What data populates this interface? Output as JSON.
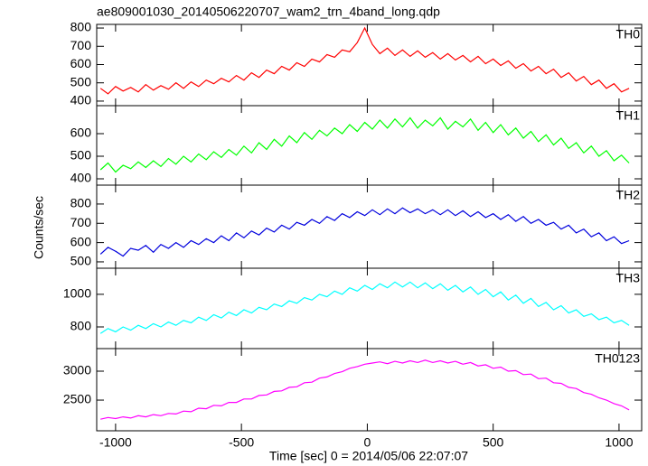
{
  "title": "ae809001030_20140506220707_wam2_trn_4band_long.qdp",
  "ylabel": "Counts/sec",
  "xlabel": "Time [sec] 0 = 2014/05/06 22:07:07",
  "chart_data": [
    {
      "type": "line",
      "label": "TH0",
      "color": "#ff0000",
      "ylim": [
        375,
        820
      ],
      "yticks": [
        400,
        500,
        600,
        700,
        800
      ],
      "xlim": [
        -1075,
        1090
      ],
      "x": [
        -1060,
        -1030,
        -1000,
        -970,
        -940,
        -910,
        -880,
        -850,
        -820,
        -790,
        -760,
        -730,
        -700,
        -670,
        -640,
        -610,
        -580,
        -550,
        -520,
        -490,
        -460,
        -430,
        -400,
        -370,
        -340,
        -310,
        -280,
        -250,
        -220,
        -190,
        -160,
        -130,
        -100,
        -70,
        -40,
        -10,
        20,
        50,
        80,
        110,
        140,
        170,
        200,
        230,
        260,
        290,
        320,
        350,
        380,
        410,
        440,
        470,
        500,
        530,
        560,
        590,
        620,
        650,
        680,
        710,
        740,
        770,
        800,
        830,
        860,
        890,
        920,
        950,
        980,
        1010,
        1040
      ],
      "values": [
        470,
        440,
        480,
        455,
        475,
        450,
        490,
        460,
        485,
        465,
        500,
        470,
        505,
        480,
        515,
        495,
        525,
        505,
        540,
        515,
        555,
        530,
        570,
        550,
        590,
        570,
        610,
        590,
        630,
        615,
        655,
        640,
        680,
        670,
        720,
        800,
        710,
        660,
        690,
        650,
        680,
        645,
        675,
        640,
        665,
        630,
        660,
        625,
        650,
        615,
        645,
        605,
        630,
        595,
        620,
        580,
        605,
        565,
        590,
        550,
        575,
        530,
        555,
        510,
        535,
        490,
        515,
        470,
        495,
        450,
        470
      ]
    },
    {
      "type": "line",
      "label": "TH1",
      "color": "#00ff00",
      "ylim": [
        372,
        724
      ],
      "yticks": [
        400,
        500,
        600
      ],
      "xlim": [
        -1075,
        1090
      ],
      "x": [
        -1060,
        -1030,
        -1000,
        -970,
        -940,
        -910,
        -880,
        -850,
        -820,
        -790,
        -760,
        -730,
        -700,
        -670,
        -640,
        -610,
        -580,
        -550,
        -520,
        -490,
        -460,
        -430,
        -400,
        -370,
        -340,
        -310,
        -280,
        -250,
        -220,
        -190,
        -160,
        -130,
        -100,
        -70,
        -40,
        -10,
        20,
        50,
        80,
        110,
        140,
        170,
        200,
        230,
        260,
        290,
        320,
        350,
        380,
        410,
        440,
        470,
        500,
        530,
        560,
        590,
        620,
        650,
        680,
        710,
        740,
        770,
        800,
        830,
        860,
        890,
        920,
        950,
        980,
        1010,
        1040
      ],
      "values": [
        440,
        470,
        430,
        460,
        445,
        475,
        450,
        480,
        455,
        490,
        465,
        500,
        475,
        510,
        485,
        520,
        495,
        530,
        505,
        545,
        515,
        560,
        530,
        575,
        545,
        590,
        560,
        605,
        575,
        615,
        590,
        625,
        600,
        640,
        610,
        650,
        620,
        660,
        625,
        665,
        630,
        670,
        625,
        660,
        635,
        670,
        620,
        655,
        630,
        665,
        615,
        650,
        605,
        640,
        595,
        625,
        580,
        610,
        565,
        595,
        550,
        580,
        535,
        560,
        515,
        545,
        500,
        525,
        480,
        505,
        470
      ]
    },
    {
      "type": "line",
      "label": "TH2",
      "color": "#0000dd",
      "ylim": [
        467,
        898
      ],
      "yticks": [
        500,
        600,
        700,
        800
      ],
      "xlim": [
        -1075,
        1090
      ],
      "x": [
        -1060,
        -1030,
        -1000,
        -970,
        -940,
        -910,
        -880,
        -850,
        -820,
        -790,
        -760,
        -730,
        -700,
        -670,
        -640,
        -610,
        -580,
        -550,
        -520,
        -490,
        -460,
        -430,
        -400,
        -370,
        -340,
        -310,
        -280,
        -250,
        -220,
        -190,
        -160,
        -130,
        -100,
        -70,
        -40,
        -10,
        20,
        50,
        80,
        110,
        140,
        170,
        200,
        230,
        260,
        290,
        320,
        350,
        380,
        410,
        440,
        470,
        500,
        530,
        560,
        590,
        620,
        650,
        680,
        710,
        740,
        770,
        800,
        830,
        860,
        890,
        920,
        950,
        980,
        1010,
        1040
      ],
      "values": [
        540,
        575,
        555,
        530,
        570,
        560,
        585,
        550,
        590,
        570,
        600,
        575,
        610,
        590,
        620,
        600,
        635,
        610,
        650,
        625,
        660,
        640,
        675,
        655,
        690,
        670,
        705,
        690,
        720,
        700,
        735,
        715,
        750,
        730,
        760,
        740,
        770,
        745,
        775,
        750,
        780,
        755,
        775,
        750,
        770,
        745,
        770,
        740,
        765,
        735,
        760,
        730,
        750,
        720,
        745,
        710,
        735,
        700,
        720,
        690,
        705,
        670,
        690,
        650,
        670,
        630,
        650,
        610,
        630,
        595,
        610
      ]
    },
    {
      "type": "line",
      "label": "TH3",
      "color": "#00ffff",
      "ylim": [
        667,
        1160
      ],
      "yticks": [
        800,
        1000
      ],
      "xlim": [
        -1075,
        1090
      ],
      "x": [
        -1060,
        -1030,
        -1000,
        -970,
        -940,
        -910,
        -880,
        -850,
        -820,
        -790,
        -760,
        -730,
        -700,
        -670,
        -640,
        -610,
        -580,
        -550,
        -520,
        -490,
        -460,
        -430,
        -400,
        -370,
        -340,
        -310,
        -280,
        -250,
        -220,
        -190,
        -160,
        -130,
        -100,
        -70,
        -40,
        -10,
        20,
        50,
        80,
        110,
        140,
        170,
        200,
        230,
        260,
        290,
        320,
        350,
        380,
        410,
        440,
        470,
        500,
        530,
        560,
        590,
        620,
        650,
        680,
        710,
        740,
        770,
        800,
        830,
        860,
        890,
        920,
        950,
        980,
        1010,
        1040
      ],
      "values": [
        760,
        790,
        770,
        800,
        780,
        810,
        790,
        820,
        800,
        830,
        810,
        840,
        825,
        860,
        840,
        875,
        855,
        890,
        870,
        905,
        885,
        920,
        905,
        940,
        925,
        960,
        945,
        980,
        965,
        1000,
        985,
        1020,
        1000,
        1040,
        1020,
        1055,
        1030,
        1065,
        1040,
        1075,
        1045,
        1075,
        1040,
        1070,
        1035,
        1065,
        1025,
        1055,
        1015,
        1045,
        1000,
        1030,
        985,
        1015,
        965,
        995,
        945,
        975,
        925,
        950,
        905,
        930,
        885,
        905,
        865,
        880,
        845,
        860,
        825,
        840,
        810
      ]
    },
    {
      "type": "line",
      "label": "TH0123",
      "color": "#ff00ff",
      "ylim": [
        1970,
        3390
      ],
      "yticks": [
        2500,
        3000
      ],
      "xlim": [
        -1075,
        1090
      ],
      "xticks": [
        -1000,
        -500,
        0,
        500,
        1000
      ],
      "x": [
        -1060,
        -1030,
        -1000,
        -970,
        -940,
        -910,
        -880,
        -850,
        -820,
        -790,
        -760,
        -730,
        -700,
        -670,
        -640,
        -610,
        -580,
        -550,
        -520,
        -490,
        -460,
        -430,
        -400,
        -370,
        -340,
        -310,
        -280,
        -250,
        -220,
        -190,
        -160,
        -130,
        -100,
        -70,
        -40,
        -10,
        20,
        50,
        80,
        110,
        140,
        170,
        200,
        230,
        260,
        290,
        320,
        350,
        380,
        410,
        440,
        470,
        500,
        530,
        560,
        590,
        620,
        650,
        680,
        710,
        740,
        770,
        800,
        830,
        860,
        890,
        920,
        950,
        980,
        1010,
        1040
      ],
      "values": [
        2170,
        2200,
        2180,
        2210,
        2190,
        2230,
        2210,
        2250,
        2230,
        2270,
        2260,
        2310,
        2300,
        2360,
        2350,
        2410,
        2400,
        2460,
        2460,
        2520,
        2520,
        2580,
        2590,
        2650,
        2660,
        2720,
        2730,
        2800,
        2810,
        2880,
        2900,
        2960,
        2990,
        3050,
        3080,
        3120,
        3140,
        3160,
        3130,
        3170,
        3140,
        3180,
        3150,
        3190,
        3150,
        3180,
        3140,
        3170,
        3120,
        3150,
        3090,
        3110,
        3050,
        3070,
        3000,
        3010,
        2940,
        2950,
        2870,
        2880,
        2800,
        2790,
        2720,
        2700,
        2630,
        2600,
        2540,
        2500,
        2440,
        2400,
        2330
      ]
    }
  ]
}
